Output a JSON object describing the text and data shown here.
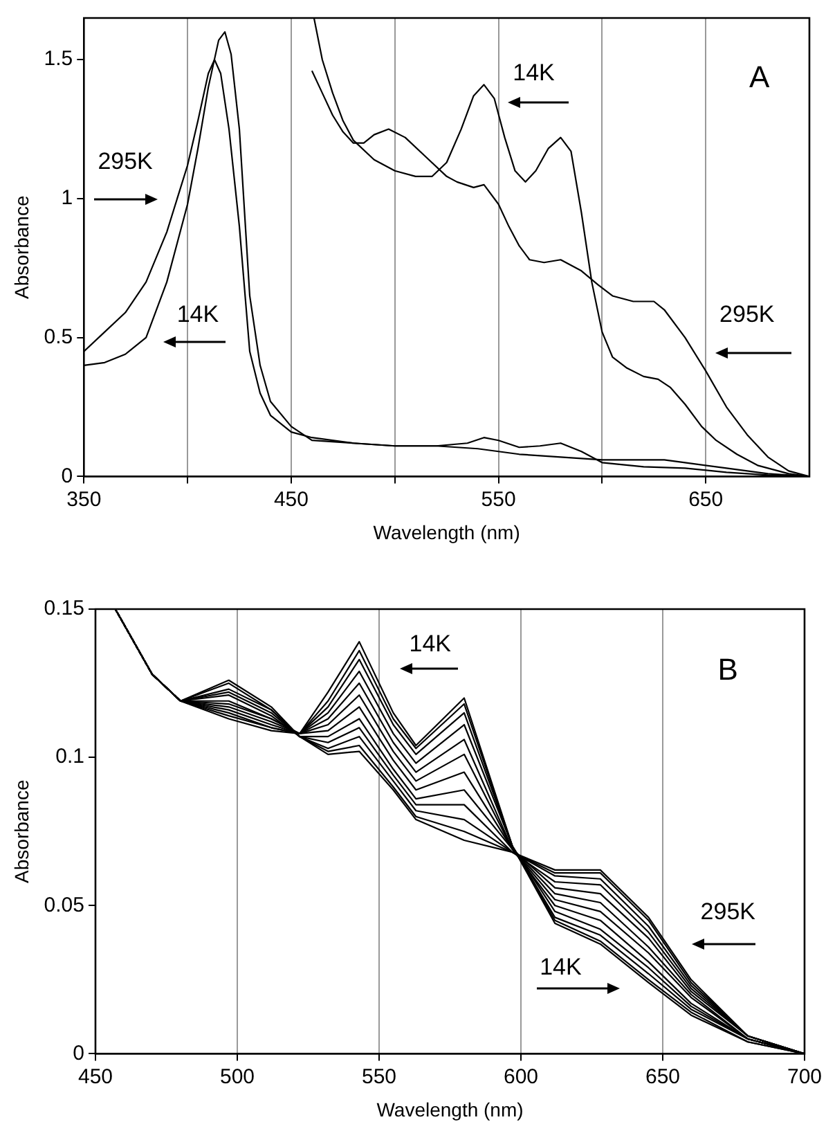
{
  "chart_data": [
    {
      "type": "line",
      "xlabel": "Wavelength (nm)",
      "ylabel": "Absorbance",
      "xlim": [
        350,
        700
      ],
      "xticks": [
        350,
        {
          "value": 400,
          "label": null
        },
        450,
        {
          "value": 500,
          "label": null
        },
        550,
        {
          "value": 600,
          "label": null
        },
        650
      ],
      "ylim": [
        0,
        1.65
      ],
      "yticks": [
        0,
        0.5,
        1,
        1.5
      ],
      "grid": "x",
      "marker": "none",
      "series": [
        {
          "color": "#000000",
          "x": [
            350,
            360,
            370,
            380,
            390,
            400,
            405,
            410,
            413,
            416,
            420,
            425,
            430,
            435,
            440,
            450,
            460,
            480,
            500,
            520,
            540,
            550,
            560,
            580,
            600,
            620,
            630,
            640,
            660,
            680,
            700
          ],
          "values": [
            0.45,
            0.52,
            0.59,
            0.7,
            0.88,
            1.12,
            1.28,
            1.45,
            1.5,
            1.45,
            1.25,
            0.9,
            0.45,
            0.3,
            0.22,
            0.16,
            0.14,
            0.12,
            0.11,
            0.11,
            0.1,
            0.09,
            0.08,
            0.07,
            0.06,
            0.06,
            0.06,
            0.05,
            0.03,
            0.01,
            0
          ]
        },
        {
          "color": "#000000",
          "x": [
            350,
            360,
            370,
            380,
            390,
            400,
            405,
            410,
            415,
            418,
            421,
            425,
            430,
            435,
            440,
            450,
            460,
            480,
            500,
            520,
            535,
            543,
            550,
            560,
            570,
            580,
            590,
            600,
            620,
            640,
            660,
            680,
            700
          ],
          "values": [
            0.4,
            0.41,
            0.44,
            0.5,
            0.7,
            0.98,
            1.18,
            1.4,
            1.57,
            1.6,
            1.52,
            1.25,
            0.65,
            0.4,
            0.27,
            0.18,
            0.13,
            0.12,
            0.11,
            0.11,
            0.12,
            0.14,
            0.13,
            0.105,
            0.11,
            0.12,
            0.09,
            0.05,
            0.035,
            0.03,
            0.015,
            0.005,
            0
          ]
        },
        {
          "color": "#000000",
          "x": [
            460,
            465,
            470,
            475,
            480,
            485,
            490,
            497,
            505,
            515,
            525,
            530,
            538,
            543,
            550,
            555,
            560,
            565,
            572,
            580,
            590,
            598,
            605,
            615,
            625,
            630,
            640,
            650,
            660,
            670,
            680,
            690,
            700
          ],
          "values": [
            1.46,
            1.38,
            1.3,
            1.24,
            1.2,
            1.2,
            1.23,
            1.25,
            1.22,
            1.15,
            1.08,
            1.06,
            1.04,
            1.05,
            0.98,
            0.9,
            0.83,
            0.78,
            0.77,
            0.78,
            0.74,
            0.69,
            0.65,
            0.63,
            0.63,
            0.6,
            0.5,
            0.38,
            0.25,
            0.15,
            0.07,
            0.02,
            0
          ]
        },
        {
          "color": "#000000",
          "x": [
            461,
            465,
            470,
            475,
            480,
            490,
            500,
            510,
            518,
            525,
            532,
            538,
            543,
            548,
            553,
            558,
            563,
            568,
            574,
            580,
            585,
            590,
            595,
            600,
            605,
            612,
            620,
            627,
            633,
            640,
            648,
            655,
            665,
            675,
            690,
            700
          ],
          "values": [
            1.65,
            1.5,
            1.38,
            1.28,
            1.21,
            1.14,
            1.1,
            1.08,
            1.08,
            1.13,
            1.25,
            1.37,
            1.41,
            1.36,
            1.22,
            1.1,
            1.06,
            1.1,
            1.18,
            1.22,
            1.17,
            0.95,
            0.7,
            0.52,
            0.43,
            0.39,
            0.36,
            0.35,
            0.32,
            0.26,
            0.18,
            0.13,
            0.08,
            0.04,
            0.01,
            0
          ]
        }
      ],
      "annotations": [
        "295K",
        "14K",
        "14K",
        "295K",
        "A"
      ]
    },
    {
      "type": "line",
      "xlabel": "Wavelength (nm)",
      "ylabel": "Absorbance",
      "xlim": [
        450,
        700
      ],
      "xticks": [
        450,
        500,
        550,
        600,
        650,
        700
      ],
      "ylim": [
        0,
        0.15
      ],
      "yticks": [
        0,
        0.05,
        0.1,
        0.15
      ],
      "grid": "x",
      "marker": "none",
      "x": [
        457,
        470,
        480,
        497,
        512,
        522,
        532,
        543,
        555,
        563,
        580,
        597,
        612,
        628,
        645,
        660,
        680,
        700
      ],
      "series": [
        {
          "color": "#000000",
          "values": [
            0.15,
            0.128,
            0.119,
            0.113,
            0.109,
            0.108,
            0.122,
            0.139,
            0.115,
            0.104,
            0.12,
            0.07,
            0.044,
            0.037,
            0.024,
            0.013,
            0.004,
            0
          ]
        },
        {
          "color": "#000000",
          "values": [
            0.15,
            0.128,
            0.119,
            0.114,
            0.11,
            0.108,
            0.119,
            0.136,
            0.113,
            0.103,
            0.118,
            0.07,
            0.045,
            0.038,
            0.025,
            0.014,
            0.004,
            0
          ]
        },
        {
          "color": "#000000",
          "values": [
            0.15,
            0.128,
            0.119,
            0.115,
            0.11,
            0.108,
            0.117,
            0.133,
            0.111,
            0.101,
            0.115,
            0.07,
            0.046,
            0.04,
            0.027,
            0.015,
            0.005,
            0
          ]
        },
        {
          "color": "#000000",
          "values": [
            0.15,
            0.128,
            0.119,
            0.116,
            0.111,
            0.108,
            0.115,
            0.129,
            0.108,
            0.098,
            0.111,
            0.07,
            0.048,
            0.042,
            0.029,
            0.016,
            0.005,
            0
          ]
        },
        {
          "color": "#000000",
          "values": [
            0.15,
            0.128,
            0.119,
            0.117,
            0.112,
            0.108,
            0.113,
            0.125,
            0.105,
            0.095,
            0.106,
            0.069,
            0.05,
            0.045,
            0.031,
            0.017,
            0.005,
            0
          ]
        },
        {
          "color": "#000000",
          "values": [
            0.15,
            0.128,
            0.119,
            0.118,
            0.113,
            0.108,
            0.111,
            0.121,
            0.102,
            0.092,
            0.101,
            0.069,
            0.052,
            0.048,
            0.034,
            0.019,
            0.005,
            0
          ]
        },
        {
          "color": "#000000",
          "values": [
            0.15,
            0.128,
            0.119,
            0.119,
            0.113,
            0.108,
            0.109,
            0.117,
            0.099,
            0.089,
            0.095,
            0.069,
            0.054,
            0.051,
            0.036,
            0.02,
            0.005,
            0
          ]
        },
        {
          "color": "#000000",
          "values": [
            0.15,
            0.128,
            0.119,
            0.121,
            0.114,
            0.107,
            0.107,
            0.113,
            0.096,
            0.086,
            0.089,
            0.069,
            0.056,
            0.054,
            0.039,
            0.021,
            0.006,
            0
          ]
        },
        {
          "color": "#000000",
          "values": [
            0.15,
            0.128,
            0.119,
            0.122,
            0.115,
            0.107,
            0.105,
            0.11,
            0.094,
            0.084,
            0.084,
            0.068,
            0.058,
            0.057,
            0.041,
            0.022,
            0.006,
            0
          ]
        },
        {
          "color": "#000000",
          "values": [
            0.15,
            0.128,
            0.119,
            0.123,
            0.116,
            0.107,
            0.103,
            0.107,
            0.092,
            0.082,
            0.079,
            0.068,
            0.06,
            0.059,
            0.043,
            0.023,
            0.006,
            0
          ]
        },
        {
          "color": "#000000",
          "values": [
            0.15,
            0.128,
            0.119,
            0.125,
            0.116,
            0.107,
            0.102,
            0.104,
            0.09,
            0.08,
            0.075,
            0.068,
            0.061,
            0.061,
            0.045,
            0.024,
            0.006,
            0
          ]
        },
        {
          "color": "#000000",
          "values": [
            0.15,
            0.128,
            0.119,
            0.126,
            0.117,
            0.107,
            0.101,
            0.102,
            0.089,
            0.079,
            0.072,
            0.068,
            0.062,
            0.062,
            0.046,
            0.025,
            0.006,
            0
          ]
        }
      ],
      "annotations": [
        "14K",
        "B",
        "295K",
        "14K"
      ]
    }
  ]
}
